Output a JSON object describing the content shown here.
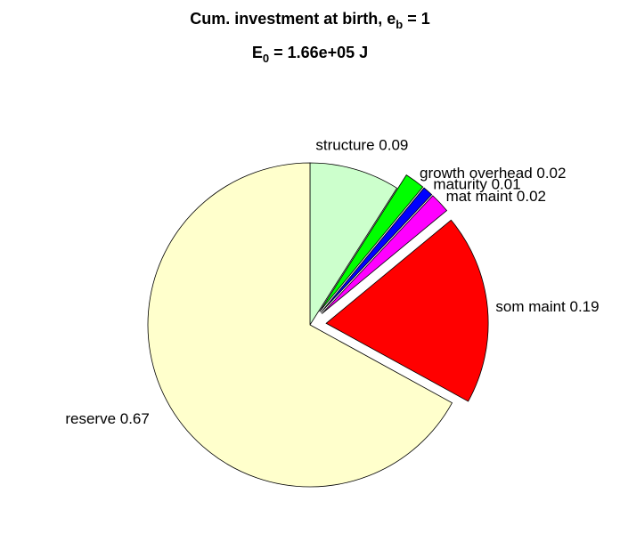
{
  "chart_data": {
    "type": "pie",
    "title": {
      "text": "Cum. investment at birth, e",
      "sub": "b",
      "tail": " = 1"
    },
    "subtitle": {
      "text": "E",
      "sub": "0",
      "tail": " = 1.66e+05 J"
    },
    "labels": [
      "structure 0.09",
      "growth overhead 0.02",
      "maturity 0.01",
      "mat maint 0.02",
      "som maint 0.19",
      "reserve 0.67"
    ],
    "values": [
      0.09,
      0.02,
      0.01,
      0.02,
      0.19,
      0.67
    ],
    "colors": [
      "#ccffcc",
      "#00ff00",
      "#0000ff",
      "#ff00ff",
      "#ff0000",
      "#ffffcc"
    ],
    "explode": [
      0,
      1,
      1,
      1,
      1,
      0
    ]
  }
}
